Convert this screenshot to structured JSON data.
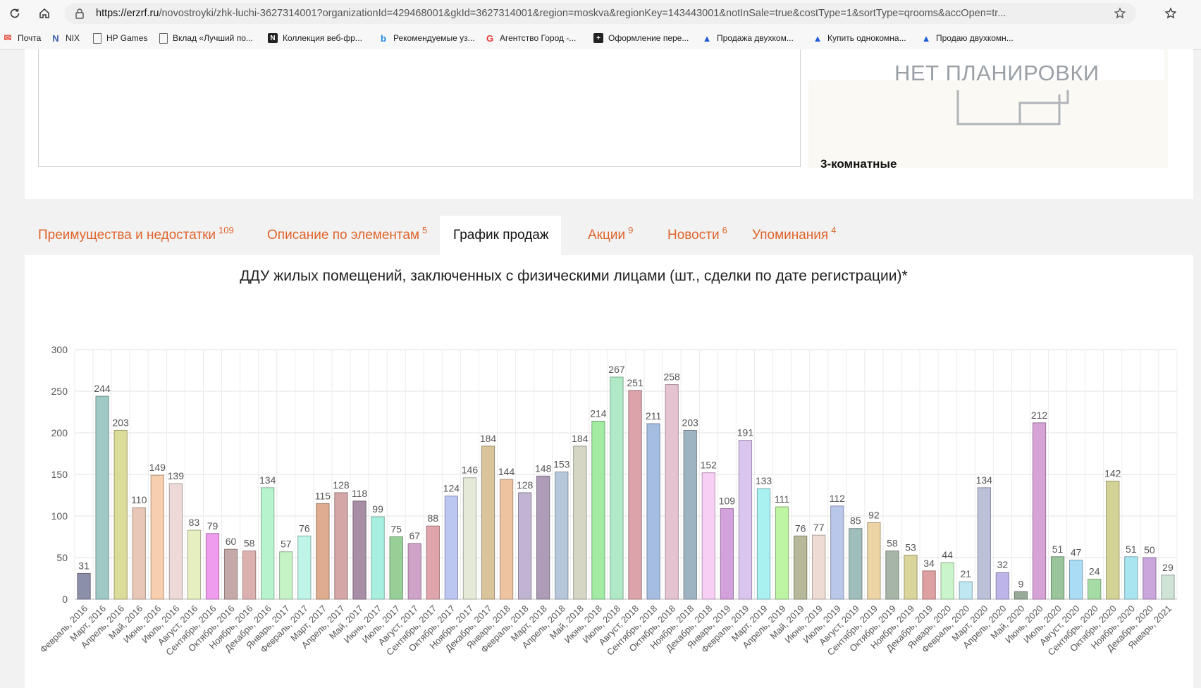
{
  "browser": {
    "url_host": "https://erzrf.ru",
    "url_path": "/novostroyki/zhk-luchi-3627314001?organizationId=429468001&gkId=3627314001&region=moskva&regionKey=143443001&notInSale=true&costType=1&sortType=qrooms&accOpen=tr..."
  },
  "bookmarks": [
    {
      "label": "Почта",
      "icon": "mail-icon",
      "color": "#e74c3c"
    },
    {
      "label": "NIX",
      "icon": "nix-icon",
      "color": "#3a5fa8"
    },
    {
      "label": "HP Games",
      "icon": "page-icon",
      "color": "#666666"
    },
    {
      "label": "Вклад «Лучший по...",
      "icon": "page-icon",
      "color": "#666666"
    },
    {
      "label": "Коллекция веб-фр...",
      "icon": "collection-icon",
      "color": "#222222"
    },
    {
      "label": "Рекомендуемые уз...",
      "icon": "bing-icon",
      "color": "#1e88e5"
    },
    {
      "label": "Агентство Город -...",
      "icon": "g-logo-icon",
      "color": "#e53935"
    },
    {
      "label": "Оформление пере...",
      "icon": "plus-icon",
      "color": "#222222"
    },
    {
      "label": "Продажа двухком...",
      "icon": "realty-icon",
      "color": "#1e5bd8"
    },
    {
      "label": "Купить однокомна...",
      "icon": "realty-icon",
      "color": "#1e5bd8"
    },
    {
      "label": "Продаю двухкомн...",
      "icon": "realty-icon",
      "color": "#1e5bd8"
    }
  ],
  "plan_card": {
    "no_plan_text": "НЕТ ПЛАНИРОВКИ",
    "rooms_label": "3-комнатные"
  },
  "tabs": [
    {
      "label": "Преимущества и недостатки",
      "count": "109",
      "active": false
    },
    {
      "label": "Описание по элементам",
      "count": "5",
      "active": false
    },
    {
      "label": "График продаж",
      "count": "",
      "active": true
    },
    {
      "label": "Акции",
      "count": "9",
      "active": false
    },
    {
      "label": "Новости",
      "count": "6",
      "active": false
    },
    {
      "label": "Упоминания",
      "count": "4",
      "active": false
    }
  ],
  "chart_data": {
    "type": "bar",
    "title": "ДДУ жилых помещений, заключенных с физическими лицами (шт., сделки по дате регистрации)*",
    "ylim": [
      0,
      300
    ],
    "yticks": [
      0,
      50,
      100,
      150,
      200,
      250,
      300
    ],
    "grid": true,
    "categories": [
      "Февраль, 2016",
      "Март, 2016",
      "Апрель, 2016",
      "Май, 2016",
      "Июнь, 2016",
      "Июль, 2016",
      "Август, 2016",
      "Сентябрь, 2016",
      "Октябрь, 2016",
      "Ноябрь, 2016",
      "Декабрь, 2016",
      "Январь, 2017",
      "Февраль, 2017",
      "Март, 2017",
      "Апрель, 2017",
      "Май, 2017",
      "Июнь, 2017",
      "Июль, 2017",
      "Август, 2017",
      "Сентябрь, 2017",
      "Октябрь, 2017",
      "Ноябрь, 2017",
      "Декабрь, 2017",
      "Январь, 2018",
      "Февраль, 2018",
      "Март, 2018",
      "Апрель, 2018",
      "Май, 2018",
      "Июнь, 2018",
      "Июль, 2018",
      "Август, 2018",
      "Сентябрь, 2018",
      "Октябрь, 2018",
      "Ноябрь, 2018",
      "Декабрь, 2018",
      "Январь, 2019",
      "Февраль, 2019",
      "Март, 2019",
      "Апрель, 2019",
      "Май, 2019",
      "Июнь, 2019",
      "Июль, 2019",
      "Август, 2019",
      "Сентябрь, 2019",
      "Октябрь, 2019",
      "Ноябрь, 2019",
      "Декабрь, 2019",
      "Январь, 2020",
      "Февраль, 2020",
      "Март, 2020",
      "Апрель, 2020",
      "Май, 2020",
      "Июнь, 2020",
      "Июль, 2020",
      "Август, 2020",
      "Сентябрь, 2020",
      "Октябрь, 2020",
      "Ноябрь, 2020",
      "Декабрь, 2020",
      "Январь, 2021"
    ],
    "values": [
      31,
      244,
      203,
      110,
      149,
      139,
      83,
      79,
      60,
      58,
      134,
      57,
      76,
      115,
      128,
      118,
      99,
      75,
      67,
      88,
      124,
      146,
      184,
      144,
      128,
      148,
      153,
      184,
      214,
      267,
      251,
      211,
      258,
      203,
      152,
      109,
      191,
      133,
      111,
      76,
      77,
      112,
      85,
      92,
      58,
      53,
      34,
      44,
      21,
      134,
      32,
      9,
      212,
      51,
      47,
      24,
      142,
      51,
      50,
      29
    ],
    "colors": [
      "#8c8fa8",
      "#9fc9c5",
      "#dcdc9a",
      "#e8c7b6",
      "#f8cfae",
      "#eed9d8",
      "#e6efc0",
      "#ef9cef",
      "#c5a9a9",
      "#ddb0b0",
      "#b7f4cd",
      "#c6f3c6",
      "#bff4e8",
      "#dfac90",
      "#d4a6a6",
      "#a78da5",
      "#a7f0e0",
      "#97cf97",
      "#cfa2c8",
      "#e0a5ab",
      "#bcc7f1",
      "#e4ead7",
      "#d9c49b",
      "#edc3a0",
      "#c1b4d2",
      "#ad9bb8",
      "#b6c7dc",
      "#d6d6c5",
      "#a2eba2",
      "#b0e9c6",
      "#dca3aa",
      "#a5bde0",
      "#e6c3d0",
      "#9eb3c1",
      "#f7cff5",
      "#d3a2dc",
      "#dac5ef",
      "#a9f0f0",
      "#bdf5a2",
      "#b7b79a",
      "#eedcd4",
      "#b9c7ea",
      "#9fbdba",
      "#ecd4a4",
      "#a7b5a7",
      "#d9d59b",
      "#dea0a0",
      "#caf5ca",
      "#bee7f2",
      "#bcc0d9",
      "#bdb5e9",
      "#97aa97",
      "#d7a3d7",
      "#9ac49a",
      "#aadcf5",
      "#a5dca5",
      "#d3d396",
      "#a7e6f1",
      "#c9a6dc",
      "#cfe3d7"
    ]
  }
}
